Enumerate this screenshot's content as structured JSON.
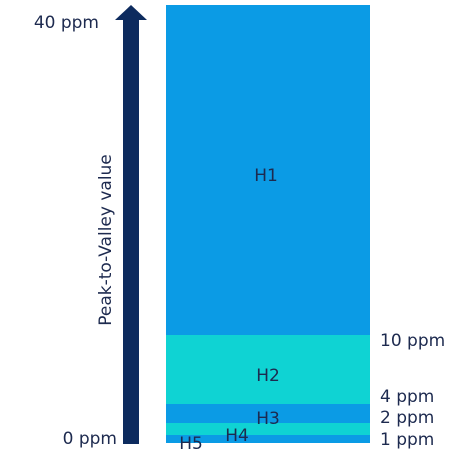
{
  "chart_data": {
    "type": "bar",
    "orientation": "vertical-stacked-bands",
    "axis_label": "Peak-to-Valley value",
    "axis_end_labels": {
      "min": "0 ppm",
      "max": "40 ppm"
    },
    "ylim": [
      0,
      40
    ],
    "boundary_labels": [
      {
        "value": 10,
        "label": "10 ppm"
      },
      {
        "value": 4,
        "label": "4 ppm"
      },
      {
        "value": 2,
        "label": "2 ppm"
      },
      {
        "value": 1,
        "label": "1 ppm"
      }
    ],
    "bands": [
      {
        "name": "H1",
        "from": 10,
        "to": 40,
        "color": "#0b9be5"
      },
      {
        "name": "H2",
        "from": 4,
        "to": 10,
        "color": "#0fd3d3"
      },
      {
        "name": "H3",
        "from": 2,
        "to": 4,
        "color": "#0b9be5"
      },
      {
        "name": "H4",
        "from": 1,
        "to": 2,
        "color": "#0fd3d3"
      },
      {
        "name": "H5",
        "from": 0,
        "to": 1,
        "color": "#0b9be5"
      }
    ],
    "arrow_color": "#0d2b5e",
    "text_color": "#1d2a4f"
  }
}
